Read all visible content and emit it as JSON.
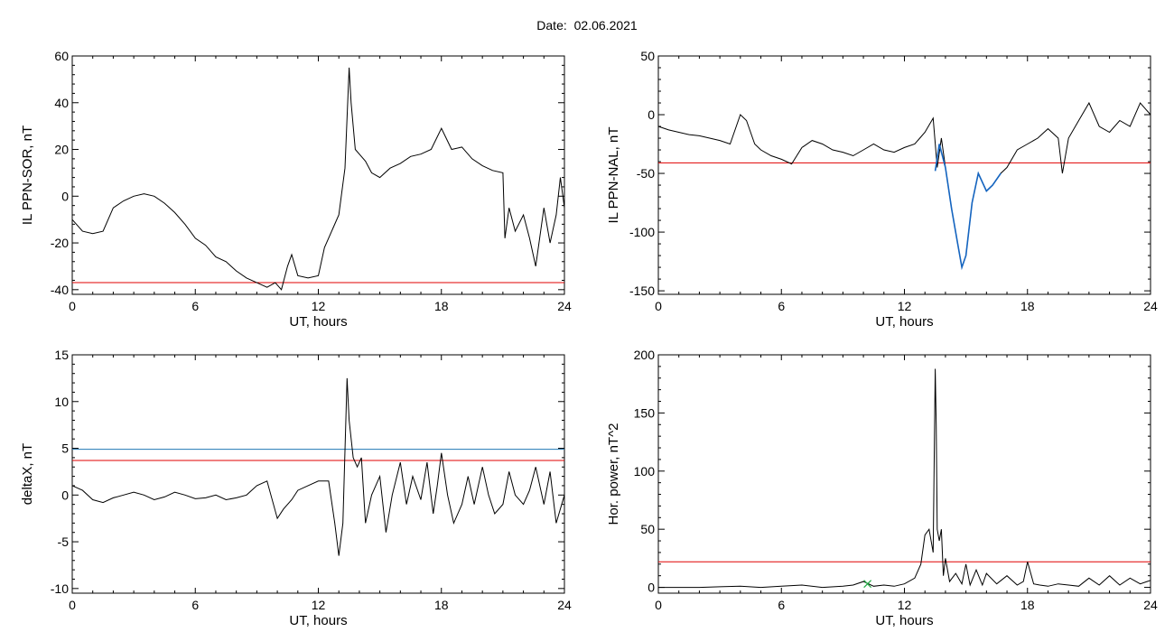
{
  "header": {
    "date_label": "Date:",
    "date_value": "02.06.2021"
  },
  "colors": {
    "axis": "#000000",
    "series": "#000000",
    "threshold_red": "#e00000",
    "threshold_blue": "#1f77b4",
    "highlight_blue": "#1565c0",
    "marker_green": "#22aa44"
  },
  "chart_data": [
    {
      "type": "line",
      "title": "",
      "xlabel": "UT, hours",
      "ylabel": "IL PPN-SOR, nT",
      "xlim": [
        0,
        24
      ],
      "ylim": [
        -42,
        60
      ],
      "xticks": [
        0,
        6,
        12,
        18,
        24
      ],
      "yticks": [
        -40,
        -20,
        0,
        20,
        40,
        60
      ],
      "series": [
        {
          "x": [
            0,
            0.5,
            1,
            1.5,
            2,
            2.5,
            3,
            3.5,
            4,
            4.5,
            5,
            5.5,
            6,
            6.5,
            7,
            7.5,
            8,
            8.5,
            9,
            9.5,
            9.9,
            10.2,
            10.5,
            10.7,
            11,
            11.5,
            12,
            12.3,
            12.7,
            13,
            13.3,
            13.5,
            13.6,
            13.8,
            14,
            14.3,
            14.6,
            15,
            15.5,
            16,
            16.5,
            17,
            17.5,
            18,
            18.5,
            19,
            19.5,
            20,
            20.5,
            21,
            21.1,
            21.3,
            21.6,
            22,
            22.3,
            22.6,
            23,
            23.3,
            23.6,
            23.8,
            24
          ],
          "y": [
            -10,
            -15,
            -16,
            -15,
            -5,
            -2,
            0,
            1,
            0,
            -3,
            -7,
            -12,
            -18,
            -21,
            -26,
            -28,
            -32,
            -35,
            -37,
            -39,
            -37,
            -40,
            -30,
            -25,
            -34,
            -35,
            -34,
            -22,
            -14,
            -8,
            12,
            55,
            40,
            20,
            18,
            15,
            10,
            8,
            12,
            14,
            17,
            18,
            20,
            29,
            20,
            21,
            16,
            13,
            11,
            10,
            -18,
            -5,
            -15,
            -8,
            -18,
            -30,
            -5,
            -20,
            -8,
            8,
            -5
          ]
        }
      ],
      "threshold_lines": [
        {
          "y": -37,
          "color": "#e00000"
        }
      ],
      "highlights": [],
      "markers": []
    },
    {
      "type": "line",
      "title": "",
      "xlabel": "UT, hours",
      "ylabel": "IL PPN-NAL, nT",
      "xlim": [
        0,
        24
      ],
      "ylim": [
        -153,
        50
      ],
      "xticks": [
        0,
        6,
        12,
        18,
        24
      ],
      "yticks": [
        -150,
        -100,
        -50,
        0,
        50
      ],
      "series": [
        {
          "x": [
            0,
            0.5,
            1,
            1.5,
            2,
            2.5,
            3,
            3.5,
            4,
            4.3,
            4.7,
            5,
            5.5,
            6,
            6.5,
            7,
            7.5,
            8,
            8.5,
            9,
            9.5,
            10,
            10.5,
            11,
            11.5,
            12,
            12.5,
            13,
            13.4,
            13.6,
            13.8,
            14,
            14.3,
            14.6,
            14.8,
            15,
            15.3,
            15.6,
            16,
            16.3,
            16.7,
            17,
            17.5,
            18,
            18.5,
            19,
            19.5,
            19.7,
            20,
            20.5,
            21,
            21.5,
            22,
            22.5,
            23,
            23.5,
            24
          ],
          "y": [
            -10,
            -13,
            -15,
            -17,
            -18,
            -20,
            -22,
            -25,
            0,
            -5,
            -25,
            -30,
            -35,
            -38,
            -42,
            -28,
            -22,
            -25,
            -30,
            -32,
            -35,
            -30,
            -25,
            -30,
            -32,
            -28,
            -25,
            -15,
            -3,
            -45,
            -20,
            -45,
            -80,
            -110,
            -130,
            -120,
            -75,
            -50,
            -65,
            -60,
            -50,
            -45,
            -30,
            -25,
            -20,
            -12,
            -20,
            -50,
            -20,
            -5,
            10,
            -10,
            -15,
            -5,
            -10,
            10,
            0
          ]
        }
      ],
      "threshold_lines": [
        {
          "y": -41,
          "color": "#e00000"
        }
      ],
      "highlights": [
        {
          "color": "#1565c0",
          "x": [
            13.5,
            13.7,
            14.0,
            14.3,
            14.6,
            14.8,
            15.0,
            15.3,
            15.6,
            16.0,
            16.3,
            16.7
          ],
          "y": [
            -48,
            -25,
            -45,
            -80,
            -110,
            -130,
            -120,
            -75,
            -50,
            -65,
            -60,
            -50
          ]
        }
      ],
      "markers": []
    },
    {
      "type": "line",
      "title": "",
      "xlabel": "UT, hours",
      "ylabel": "deltaX, nT",
      "xlim": [
        0,
        24
      ],
      "ylim": [
        -10.5,
        15
      ],
      "xticks": [
        0,
        6,
        12,
        18,
        24
      ],
      "yticks": [
        -10,
        -5,
        0,
        5,
        10,
        15
      ],
      "series": [
        {
          "x": [
            0,
            0.5,
            1,
            1.5,
            2,
            2.5,
            3,
            3.5,
            4,
            4.5,
            5,
            5.5,
            6,
            6.5,
            7,
            7.5,
            8,
            8.5,
            9,
            9.5,
            10,
            10.3,
            10.7,
            11,
            11.5,
            12,
            12.5,
            12.8,
            13,
            13.2,
            13.4,
            13.5,
            13.7,
            13.9,
            14.1,
            14.3,
            14.6,
            15,
            15.3,
            15.6,
            16,
            16.3,
            16.6,
            17,
            17.3,
            17.6,
            17.8,
            18,
            18.3,
            18.6,
            19,
            19.3,
            19.6,
            20,
            20.3,
            20.6,
            21,
            21.3,
            21.6,
            22,
            22.3,
            22.6,
            23,
            23.3,
            23.6,
            24
          ],
          "y": [
            1,
            0.5,
            -0.5,
            -0.8,
            -0.3,
            0,
            0.3,
            0,
            -0.5,
            -0.2,
            0.3,
            0,
            -0.4,
            -0.3,
            0,
            -0.5,
            -0.3,
            0,
            1,
            1.5,
            -2.5,
            -1.5,
            -0.5,
            0.5,
            1,
            1.5,
            1.5,
            -3,
            -6.5,
            -3,
            12.5,
            8,
            4,
            3,
            4,
            -3,
            0,
            2,
            -4,
            0,
            3.5,
            -1,
            2,
            -0.5,
            3.5,
            -2,
            1,
            4.5,
            0,
            -3,
            -1,
            2,
            -1,
            3,
            0,
            -2,
            -1,
            2.5,
            0,
            -1,
            0.5,
            3,
            -1,
            2.5,
            -3,
            0
          ]
        }
      ],
      "threshold_lines": [
        {
          "y": 4.9,
          "color": "#1f77b4"
        },
        {
          "y": 3.7,
          "color": "#e00000"
        }
      ],
      "highlights": [],
      "markers": []
    },
    {
      "type": "line",
      "title": "",
      "xlabel": "UT, hours",
      "ylabel": "Hor. power, nT^2",
      "xlim": [
        0,
        24
      ],
      "ylim": [
        -5,
        200
      ],
      "xticks": [
        0,
        6,
        12,
        18,
        24
      ],
      "yticks": [
        0,
        50,
        100,
        150,
        200
      ],
      "series": [
        {
          "x": [
            0,
            1,
            2,
            3,
            4,
            5,
            6,
            7,
            8,
            9,
            9.5,
            10,
            10.5,
            11,
            11.5,
            12,
            12.5,
            12.8,
            13,
            13.2,
            13.4,
            13.5,
            13.55,
            13.6,
            13.7,
            13.8,
            13.9,
            14,
            14.2,
            14.5,
            14.8,
            15,
            15.2,
            15.5,
            15.8,
            16,
            16.5,
            17,
            17.5,
            17.8,
            18,
            18.3,
            18.6,
            19,
            19.5,
            20,
            20.5,
            21,
            21.5,
            22,
            22.5,
            23,
            23.5,
            24
          ],
          "y": [
            0,
            0,
            0,
            0.5,
            1,
            0,
            1,
            2,
            0,
            1,
            2,
            5,
            1,
            2,
            1,
            3,
            8,
            20,
            45,
            50,
            30,
            188,
            140,
            50,
            40,
            50,
            10,
            25,
            5,
            12,
            3,
            20,
            2,
            15,
            2,
            12,
            3,
            10,
            2,
            5,
            22,
            3,
            2,
            1,
            3,
            2,
            1,
            8,
            2,
            10,
            2,
            8,
            3,
            6
          ]
        }
      ],
      "threshold_lines": [
        {
          "y": 22,
          "color": "#e00000"
        }
      ],
      "highlights": [],
      "markers": [
        {
          "x": 10.2,
          "y": 3,
          "symbol": "x",
          "color": "#22aa44"
        }
      ]
    }
  ]
}
